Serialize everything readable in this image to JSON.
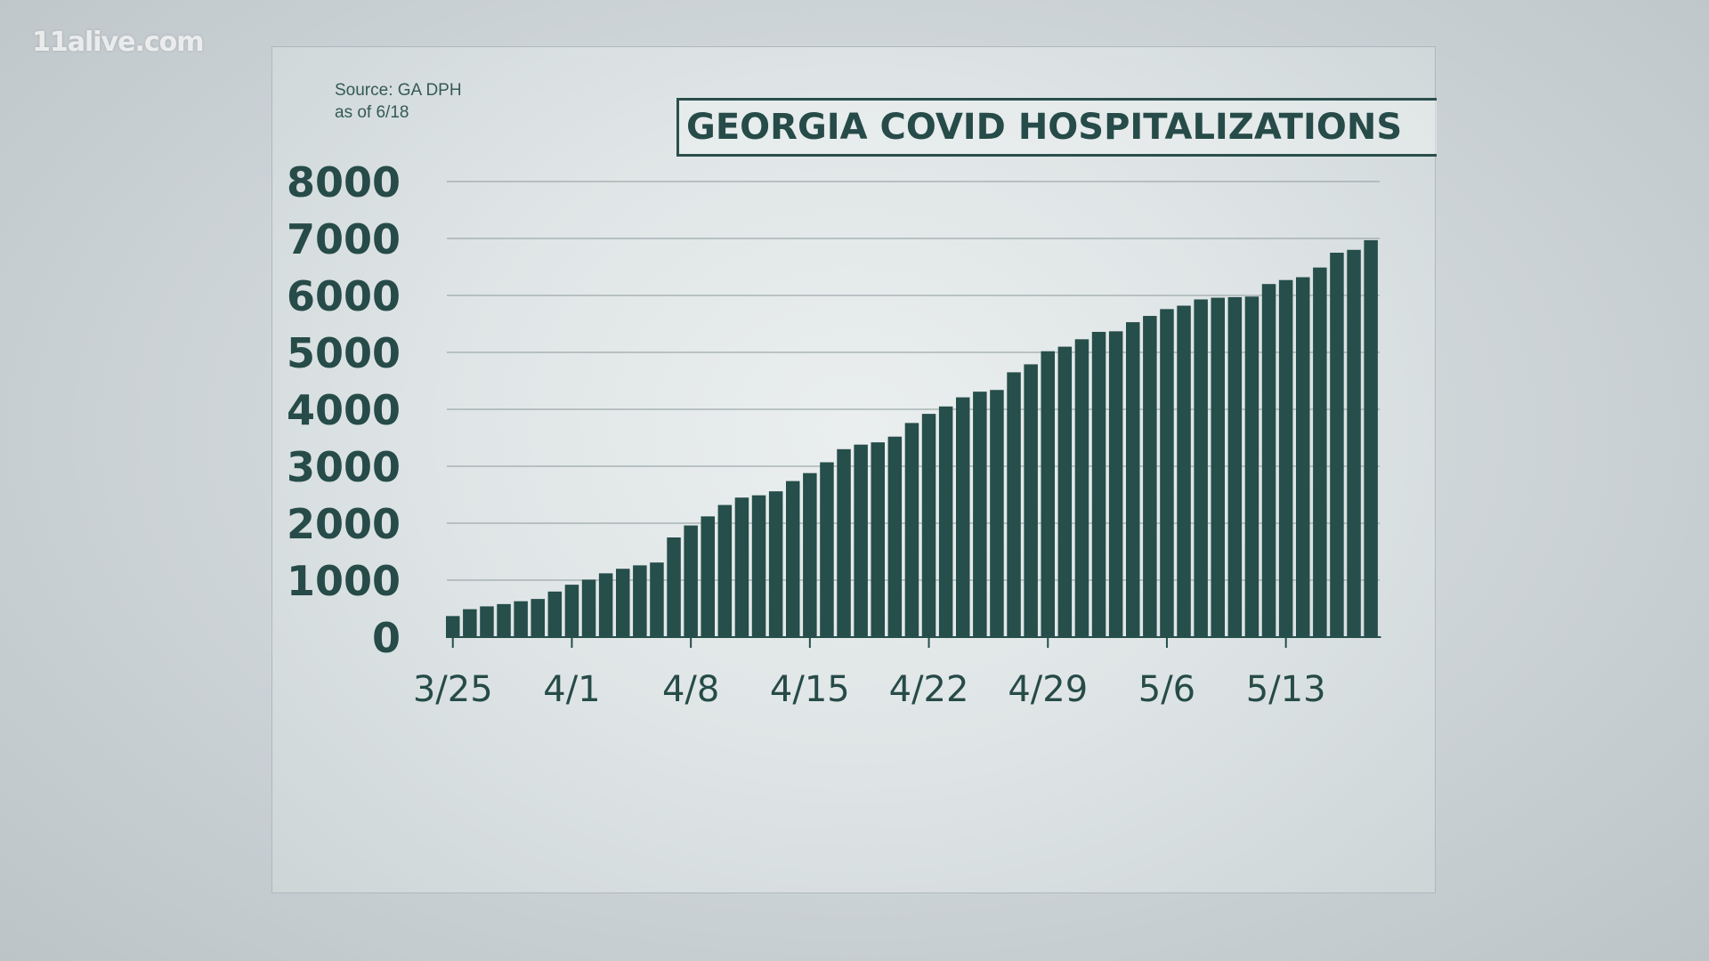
{
  "watermark": "11alive.com",
  "source_line1": "Source: GA DPH",
  "source_line2": "as of 6/18",
  "colors": {
    "bar": "#264e4b",
    "text": "#264b48",
    "grid": "#8c9a9c"
  },
  "chart_data": {
    "type": "bar",
    "title": "GEORGIA COVID HOSPITALIZATIONS",
    "xlabel": "",
    "ylabel": "",
    "ylim": [
      0,
      8000
    ],
    "yticks": [
      "0",
      "1000",
      "2000",
      "3000",
      "4000",
      "5000",
      "6000",
      "7000",
      "8000"
    ],
    "xtick_labels": [
      {
        "label": "3/25",
        "index": 0
      },
      {
        "label": "4/1",
        "index": 7
      },
      {
        "label": "4/8",
        "index": 14
      },
      {
        "label": "4/15",
        "index": 21
      },
      {
        "label": "4/22",
        "index": 28
      },
      {
        "label": "4/29",
        "index": 35
      },
      {
        "label": "5/6",
        "index": 42
      },
      {
        "label": "5/13",
        "index": 49
      }
    ],
    "grid": true,
    "values": [
      370,
      490,
      540,
      580,
      630,
      670,
      800,
      920,
      1010,
      1120,
      1200,
      1260,
      1310,
      1750,
      1960,
      2120,
      2320,
      2450,
      2490,
      2560,
      2740,
      2880,
      3070,
      3300,
      3380,
      3420,
      3520,
      3760,
      3920,
      4050,
      4210,
      4310,
      4340,
      4650,
      4790,
      5020,
      5100,
      5230,
      5360,
      5370,
      5530,
      5640,
      5760,
      5820,
      5930,
      5960,
      5970,
      5980,
      6200,
      6270,
      6320,
      6490,
      6750,
      6800,
      6970
    ]
  }
}
